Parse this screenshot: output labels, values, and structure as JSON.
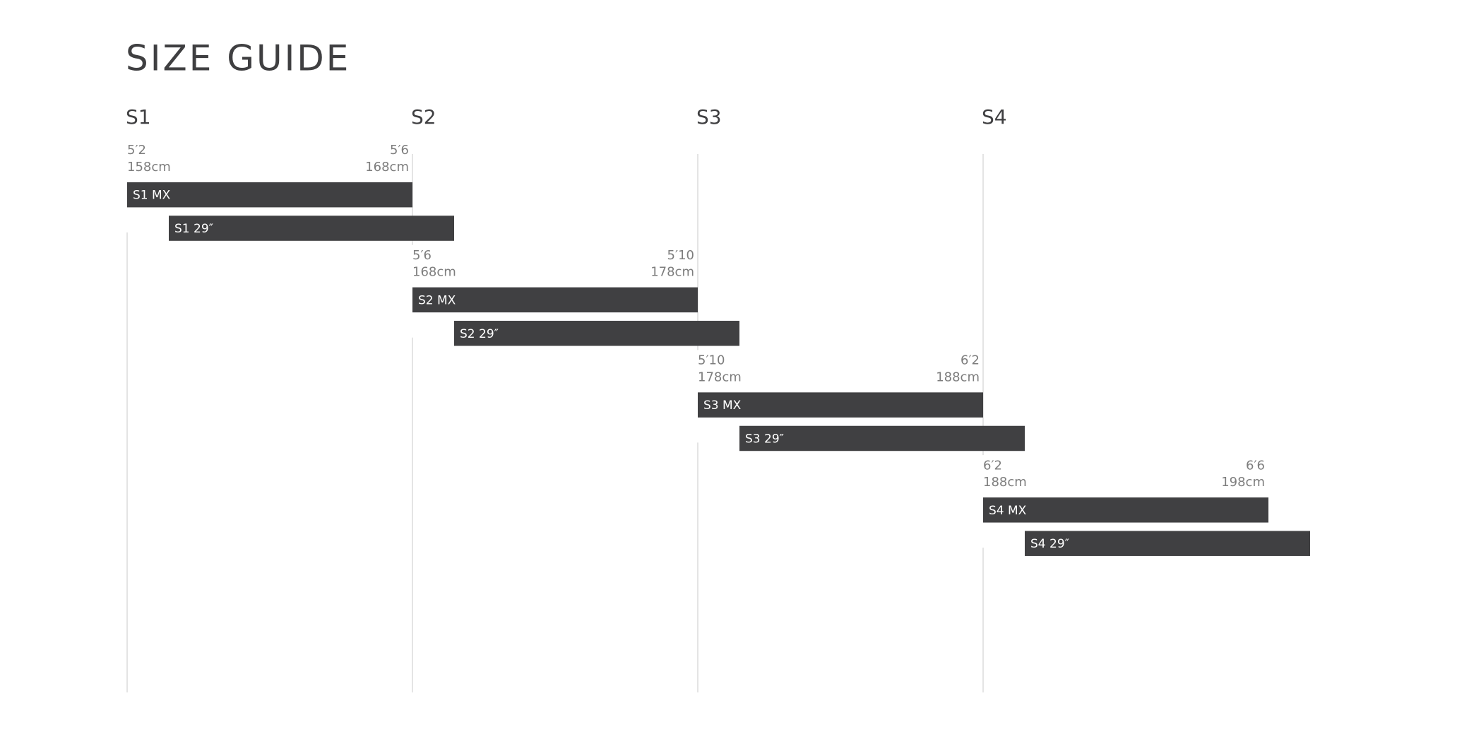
{
  "title": "SIZE GUIDE",
  "columns": [
    "S1",
    "S2",
    "S3",
    "S4"
  ],
  "sizes": [
    {
      "min": {
        "ft": "5′2",
        "cm": "158cm"
      },
      "max": {
        "ft": "5′6",
        "cm": "168cm"
      },
      "bars": [
        "S1 MX",
        "S1 29″"
      ]
    },
    {
      "min": {
        "ft": "5′6",
        "cm": "168cm"
      },
      "max": {
        "ft": "5′10",
        "cm": "178cm"
      },
      "bars": [
        "S2 MX",
        "S2 29″"
      ]
    },
    {
      "min": {
        "ft": "5′10",
        "cm": "178cm"
      },
      "max": {
        "ft": "6′2",
        "cm": "188cm"
      },
      "bars": [
        "S3 MX",
        "S3 29″"
      ]
    },
    {
      "min": {
        "ft": "6′2",
        "cm": "188cm"
      },
      "max": {
        "ft": "6′6",
        "cm": "198cm"
      },
      "bars": [
        "S4 MX",
        "S4 29″"
      ]
    }
  ]
}
